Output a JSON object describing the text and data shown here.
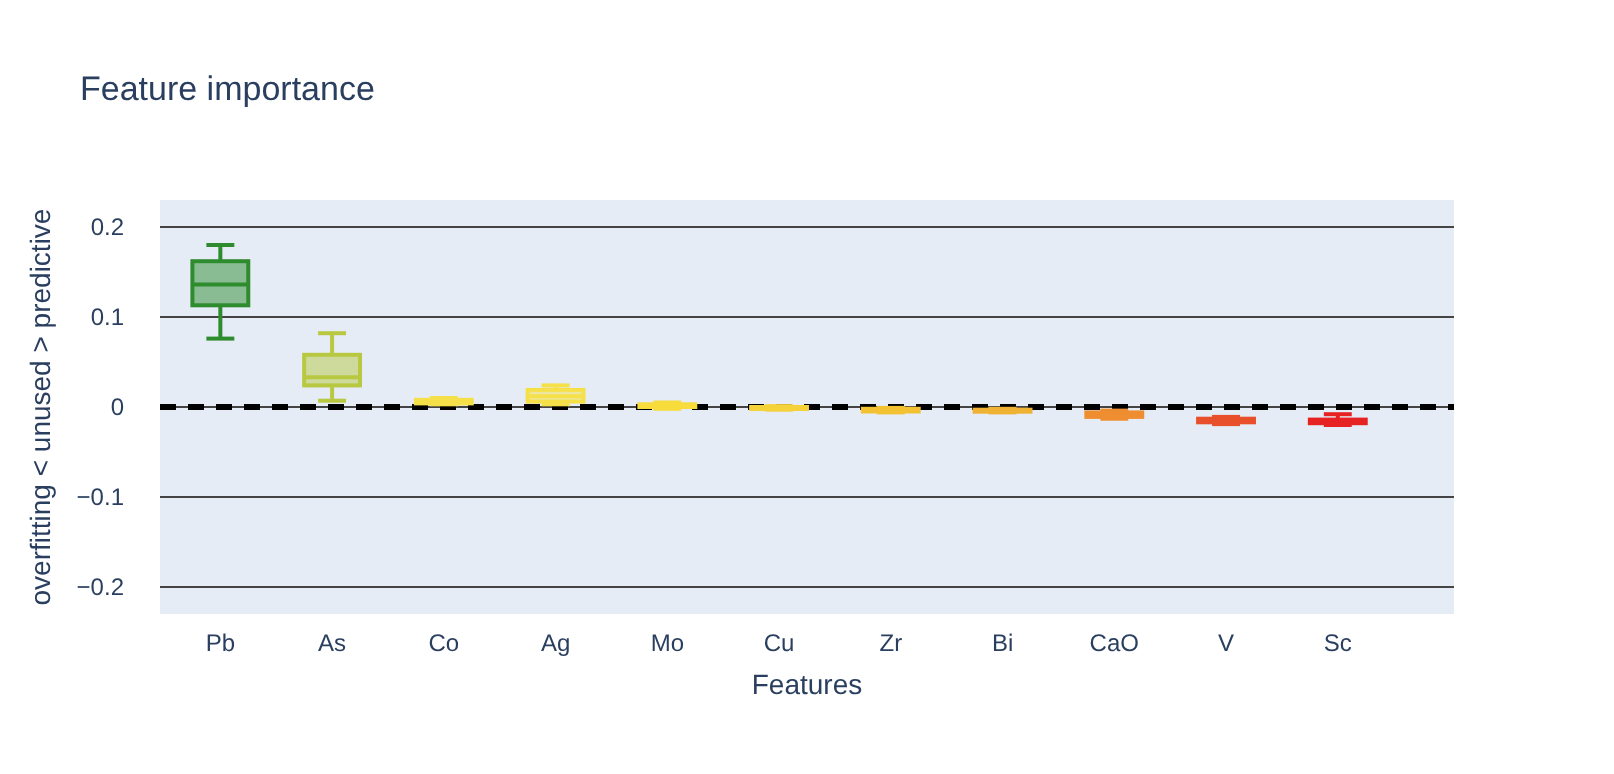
{
  "chart_data": {
    "type": "box",
    "title": "Feature importance",
    "xlabel": "Features",
    "ylabel": "overfitting < unused > predictive",
    "categories": [
      "Pb",
      "As",
      "Co",
      "Ag",
      "Mo",
      "Cu",
      "Zr",
      "Bi",
      "CaO",
      "V",
      "Sc"
    ],
    "colors": [
      "#2e8b2e",
      "#b8c840",
      "#f5e04a",
      "#f5e04a",
      "#f7dc3c",
      "#f5d23a",
      "#f3c232",
      "#f0b232",
      "#ee8e30",
      "#e8502c",
      "#e62222"
    ],
    "boxes": [
      {
        "low": 0.076,
        "q1": 0.113,
        "median": 0.136,
        "q3": 0.162,
        "high": 0.18
      },
      {
        "low": 0.007,
        "q1": 0.024,
        "median": 0.033,
        "q3": 0.058,
        "high": 0.082
      },
      {
        "low": 0.003,
        "q1": 0.004,
        "median": 0.006,
        "q3": 0.008,
        "high": 0.01
      },
      {
        "low": 0.003,
        "q1": 0.006,
        "median": 0.012,
        "q3": 0.019,
        "high": 0.024
      },
      {
        "low": -0.002,
        "q1": 0,
        "median": 0.002,
        "q3": 0.003,
        "high": 0.005
      },
      {
        "low": -0.003,
        "q1": -0.002,
        "median": -0.001,
        "q3": 0,
        "high": 0.001
      },
      {
        "low": -0.006,
        "q1": -0.005,
        "median": -0.003,
        "q3": -0.002,
        "high": -0.001
      },
      {
        "low": -0.006,
        "q1": -0.005,
        "median": -0.004,
        "q3": -0.003,
        "high": -0.002
      },
      {
        "low": -0.013,
        "q1": -0.011,
        "median": -0.008,
        "q3": -0.006,
        "high": -0.004
      },
      {
        "low": -0.019,
        "q1": -0.017,
        "median": -0.015,
        "q3": -0.013,
        "high": -0.011
      },
      {
        "low": -0.02,
        "q1": -0.018,
        "median": -0.016,
        "q3": -0.014,
        "high": -0.008
      }
    ],
    "ylim": [
      -0.23,
      0.23
    ],
    "yticks": [
      {
        "value": -0.2,
        "label": "−0.2"
      },
      {
        "value": -0.1,
        "label": "−0.1"
      },
      0,
      0.1,
      0.2
    ],
    "grid": "y",
    "ref_lines": [
      {
        "axis": "y",
        "value": 0,
        "color": "#000000",
        "line_style": "dashed"
      }
    ]
  }
}
